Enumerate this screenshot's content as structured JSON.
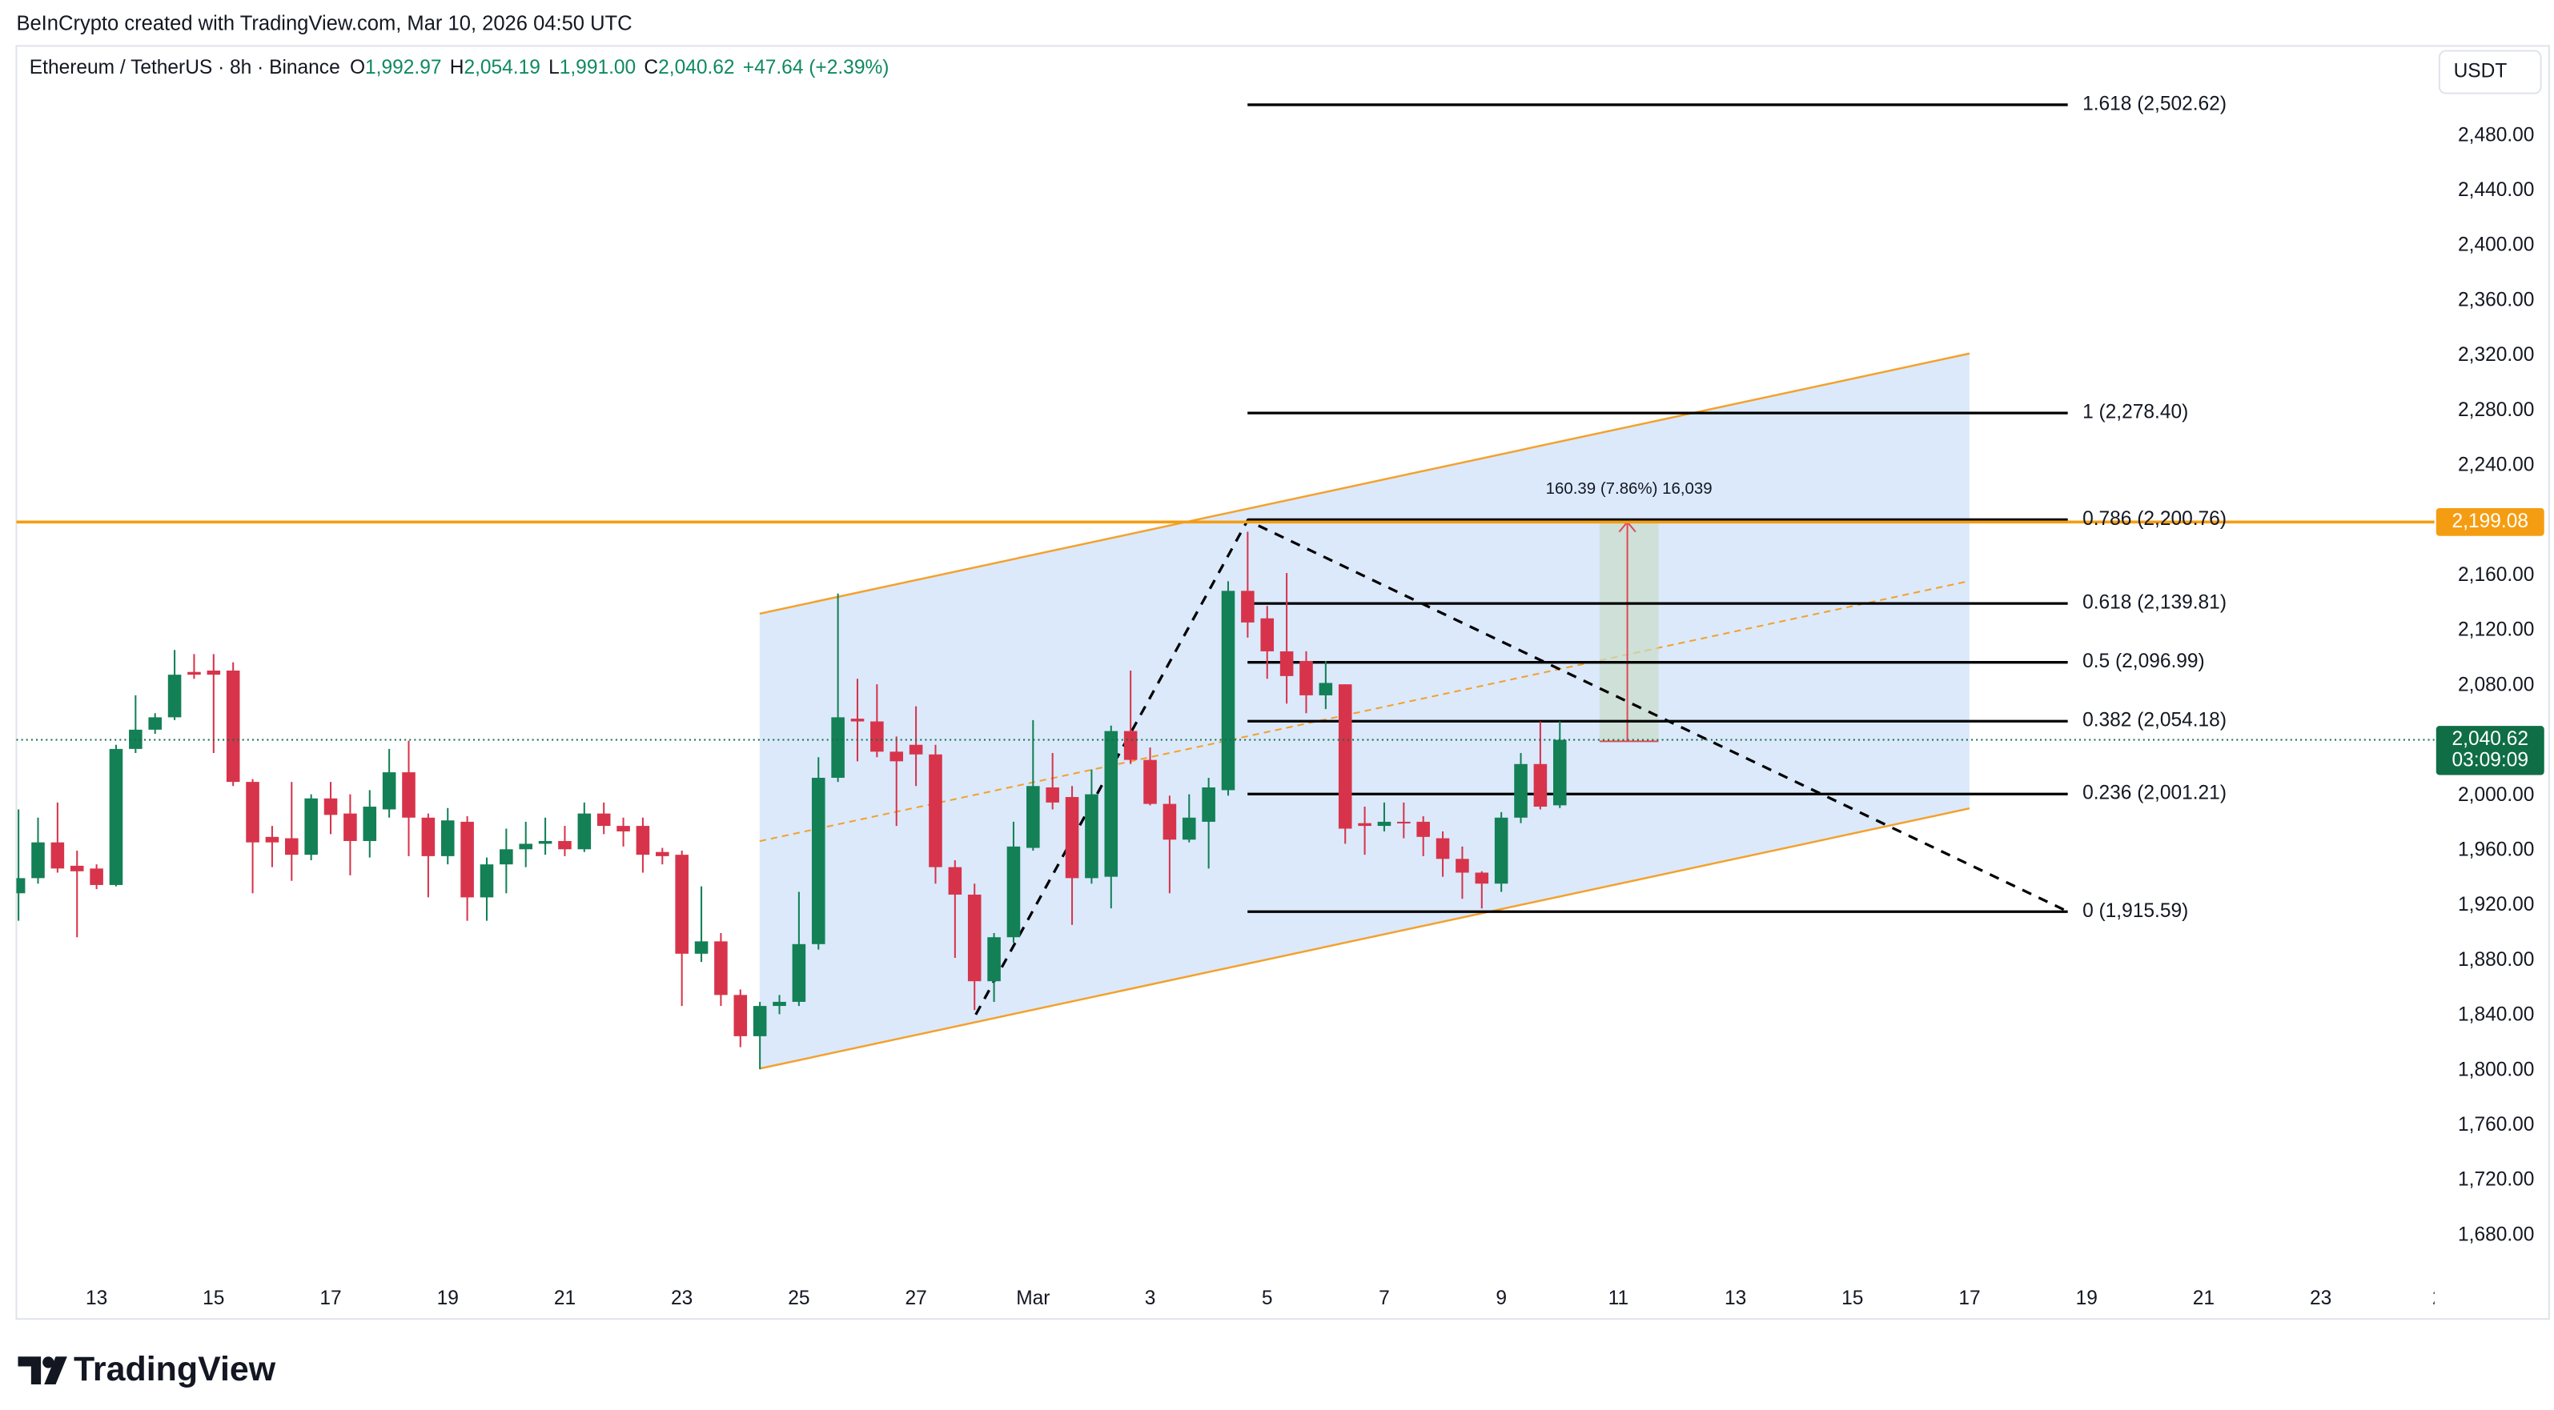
{
  "header": {
    "attribution": "BeInCrypto created with TradingView.com, Mar 10, 2026 04:50 UTC",
    "symbol": "Ethereum / TetherUS · 8h · Binance",
    "ohlc_legend": [
      {
        "key": "O",
        "value": "1,992.97"
      },
      {
        "key": "H",
        "value": "2,054.19"
      },
      {
        "key": "L",
        "value": "1,991.00"
      },
      {
        "key": "C",
        "value": "2,040.62"
      }
    ],
    "change": "+47.64 (+2.39%)",
    "currency": "USDT"
  },
  "chart_data": {
    "type": "candlestick",
    "open": [
      1929,
      1940,
      1966,
      1949,
      1947,
      1935,
      2034,
      2048,
      2057,
      2090,
      2091,
      2091,
      2010,
      1970,
      1969,
      1957,
      1998,
      1987,
      1967,
      1990,
      2017,
      1984,
      1956,
      1981,
      1926,
      1950,
      1961,
      1965,
      1967,
      1961,
      1987,
      1978,
      1978,
      1959,
      1957,
      1885,
      1894,
      1855,
      1825,
      1847,
      1850,
      1892,
      2013,
      2056,
      2054,
      2032,
      2037,
      2030,
      1948,
      1928,
      1865,
      1897,
      1962,
      2006,
      1999,
      1940,
      1941,
      2047,
      2026,
      1994,
      1968,
      1981,
      2004,
      2149,
      2129,
      2105,
      2098,
      2073,
      2081,
      1980,
      1978,
      1981,
      1981,
      1969,
      1954,
      1944,
      1936,
      1984,
      2023,
      1992.97
    ],
    "high": [
      1990,
      1984,
      1995,
      1960,
      1950,
      2037,
      2073,
      2060,
      2106,
      2103,
      2103,
      2097,
      2012,
      1978,
      2010,
      2001,
      2010,
      2001,
      2004,
      2034,
      2040,
      1987,
      1991,
      1985,
      1955,
      1976,
      1981,
      1984,
      1978,
      1995,
      1995,
      1984,
      1984,
      1962,
      1960,
      1934,
      1900,
      1859,
      1850,
      1855,
      1930,
      2028,
      2147,
      2085,
      2081,
      2043,
      2065,
      2037,
      1953,
      1936,
      1900,
      1981,
      2055,
      2031,
      2007,
      2019,
      2051,
      2091,
      2035,
      2000,
      2001,
      2013,
      2156,
      2192,
      2138,
      2162,
      2105,
      2098,
      2081,
      1992,
      1995,
      1995,
      1985,
      1974,
      1963,
      1945,
      1988,
      2031,
      2054,
      2054.19
    ],
    "low": [
      1909,
      1936,
      1944,
      1897,
      1932,
      1934,
      2031,
      2045,
      2055,
      2085,
      2031,
      2007,
      1929,
      1948,
      1938,
      1953,
      1972,
      1942,
      1955,
      1984,
      1956,
      1926,
      1950,
      1909,
      1909,
      1929,
      1948,
      1957,
      1956,
      1959,
      1972,
      1963,
      1944,
      1950,
      1847,
      1879,
      1847,
      1817,
      1801,
      1841,
      1847,
      1888,
      2010,
      2025,
      2028,
      1978,
      2007,
      1936,
      1882,
      1844,
      1850,
      1893,
      1960,
      1990,
      1906,
      1936,
      1918,
      2023,
      1993,
      1929,
      1966,
      1947,
      2000,
      2115,
      2085,
      2067,
      2060,
      2063,
      1965,
      1957,
      1974,
      1969,
      1956,
      1941,
      1925,
      1918,
      1930,
      1980,
      1990,
      1991.0
    ],
    "close": [
      1940,
      1966,
      1947,
      1945,
      1935,
      2034,
      2048,
      2057,
      2088,
      2088,
      2088,
      2010,
      1966,
      1966,
      1957,
      1998,
      1986,
      1967,
      1992,
      2017,
      1984,
      1956,
      1982,
      1926,
      1950,
      1961,
      1965,
      1967,
      1961,
      1987,
      1978,
      1974,
      1957,
      1956,
      1885,
      1894,
      1855,
      1825,
      1847,
      1850,
      1892,
      2013,
      2057,
      2054,
      2032,
      2025,
      2030,
      1948,
      1928,
      1865,
      1897,
      1963,
      2007,
      1995,
      1940,
      2001,
      2047,
      2026,
      1994,
      1968,
      1984,
      2006,
      2149,
      2126,
      2105,
      2087,
      2073,
      2082,
      1976,
      1978,
      1981,
      1980,
      1970,
      1954,
      1944,
      1936,
      1984,
      2023,
      1992,
      2040.62
    ],
    "up_color": "#138056",
    "down_color": "#d7344b",
    "xlim": [
      -0.11,
      123.83
    ],
    "xticks": [
      {
        "value": 4,
        "label": "13"
      },
      {
        "value": 10,
        "label": "15"
      },
      {
        "value": 16,
        "label": "17"
      },
      {
        "value": 22,
        "label": "19"
      },
      {
        "value": 28,
        "label": "21"
      },
      {
        "value": 34,
        "label": "23"
      },
      {
        "value": 40,
        "label": "25"
      },
      {
        "value": 46,
        "label": "27"
      },
      {
        "value": 52,
        "label": "Mar"
      },
      {
        "value": 58,
        "label": "3"
      },
      {
        "value": 64,
        "label": "5"
      },
      {
        "value": 70,
        "label": "7"
      },
      {
        "value": 76,
        "label": "9"
      },
      {
        "value": 82,
        "label": "11"
      },
      {
        "value": 88,
        "label": "13"
      },
      {
        "value": 94,
        "label": "15"
      },
      {
        "value": 100,
        "label": "17"
      },
      {
        "value": 106,
        "label": "19"
      },
      {
        "value": 112,
        "label": "21"
      },
      {
        "value": 118,
        "label": "23"
      },
      {
        "value": 124,
        "label": "2"
      }
    ],
    "ylim": [
      1650.24,
      2545.48
    ],
    "yticks": [
      {
        "value": 2480,
        "label": "2,480.00"
      },
      {
        "value": 2440,
        "label": "2,440.00"
      },
      {
        "value": 2400,
        "label": "2,400.00"
      },
      {
        "value": 2360,
        "label": "2,360.00"
      },
      {
        "value": 2320,
        "label": "2,320.00"
      },
      {
        "value": 2280,
        "label": "2,280.00"
      },
      {
        "value": 2240,
        "label": "2,240.00"
      },
      {
        "value": 2200,
        "label": "2,200.00"
      },
      {
        "value": 2160,
        "label": "2,160.00"
      },
      {
        "value": 2120,
        "label": "2,120.00"
      },
      {
        "value": 2080,
        "label": "2,080.00"
      },
      {
        "value": 2040,
        "label": "2,040.00"
      },
      {
        "value": 2000,
        "label": "2,000.00"
      },
      {
        "value": 1960,
        "label": "1,960.00"
      },
      {
        "value": 1920,
        "label": "1,920.00"
      },
      {
        "value": 1880,
        "label": "1,880.00"
      },
      {
        "value": 1840,
        "label": "1,840.00"
      },
      {
        "value": 1800,
        "label": "1,800.00"
      },
      {
        "value": 1760,
        "label": "1,760.00"
      },
      {
        "value": 1720,
        "label": "1,720.00"
      },
      {
        "value": 1680,
        "label": "1,680.00"
      }
    ],
    "grid": false,
    "fib_color": "#000000",
    "fib_levels": [
      {
        "value": 2502.62,
        "label": "1.618 (2,502.62)"
      },
      {
        "value": 2278.4,
        "label": "1 (2,278.40)"
      },
      {
        "value": 2200.76,
        "label": "0.786 (2,200.76)"
      },
      {
        "value": 2139.81,
        "label": "0.618 (2,139.81)"
      },
      {
        "value": 2096.99,
        "label": "0.5 (2,096.99)"
      },
      {
        "value": 2054.18,
        "label": "0.382 (2,054.18)"
      },
      {
        "value": 2001.21,
        "label": "0.236 (2,001.21)"
      },
      {
        "value": 1915.59,
        "label": "0 (1,915.59)"
      }
    ],
    "price_lines": [
      {
        "value": 2199.08,
        "label": "2,199.08",
        "color": "#f59d12",
        "style": "solid"
      },
      {
        "value": 2040.62,
        "label": "2,040.62",
        "countdown": "03:09:09",
        "color": "#0f6e45",
        "style": "dotted"
      }
    ],
    "measure_label": "160.39 (7.86%) 16,039"
  },
  "footer": {
    "brand": "TradingView"
  }
}
